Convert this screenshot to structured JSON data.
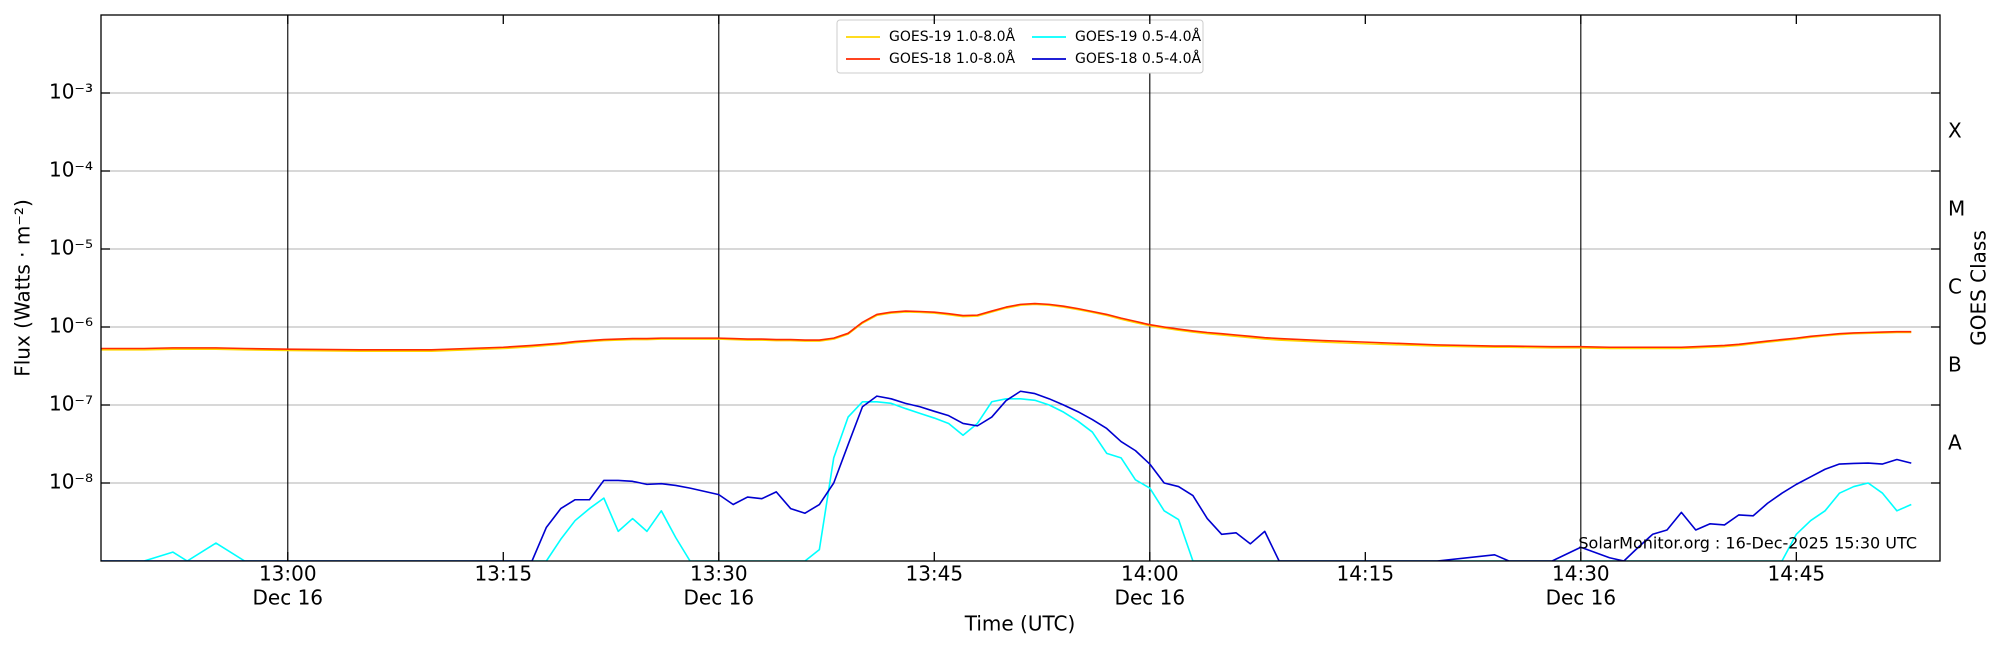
{
  "chart_data": {
    "type": "line",
    "ylabel": "Flux (Watts · m⁻²)",
    "y2label": "GOES Class",
    "xlabel": "Time (UTC)",
    "annotation": "SolarMonitor.org : 16-Dec-2025 15:30 UTC",
    "yscale": "log",
    "grid": true,
    "legend": "upper center",
    "xlim": [
      "12:47",
      "14:55"
    ],
    "xticks": [
      {
        "value": "13:00",
        "label": "13:00",
        "date": "Dec 16"
      },
      "13:15",
      {
        "value": "13:30",
        "label": "13:30",
        "date": "Dec 16"
      },
      "13:45",
      {
        "value": "14:00",
        "label": "14:00",
        "date": "Dec 16"
      },
      "14:15",
      {
        "value": "14:30",
        "label": "14:30",
        "date": "Dec 16"
      },
      "14:45"
    ],
    "ylim": [
      1e-09,
      0.01
    ],
    "yticks": [
      {
        "value": 1e-08,
        "label": "10⁻⁸"
      },
      {
        "value": 1e-07,
        "label": "10⁻⁷"
      },
      {
        "value": 1e-06,
        "label": "10⁻⁶"
      },
      {
        "value": 1e-05,
        "label": "10⁻⁵"
      },
      {
        "value": 0.0001,
        "label": "10⁻⁴"
      },
      {
        "value": 0.001,
        "label": "10⁻³"
      }
    ],
    "y2lim": [
      1e-09,
      0.01
    ],
    "y2ticks": [
      {
        "value": 3.162e-08,
        "label": "A"
      },
      {
        "value": 3.162e-07,
        "label": "B"
      },
      {
        "value": 3.162e-06,
        "label": "C"
      },
      {
        "value": 3.162e-05,
        "label": "M"
      },
      {
        "value": 0.0003162,
        "label": "X"
      }
    ],
    "x": [
      "12:47",
      "12:50",
      "12:52",
      "12:53",
      "12:55",
      "12:57",
      "13:00",
      "13:05",
      "13:10",
      "13:15",
      "13:17",
      "13:18",
      "13:19",
      "13:20",
      "13:21",
      "13:22",
      "13:23",
      "13:24",
      "13:25",
      "13:26",
      "13:27",
      "13:28",
      "13:30",
      "13:31",
      "13:32",
      "13:33",
      "13:34",
      "13:35",
      "13:36",
      "13:37",
      "13:38",
      "13:39",
      "13:40",
      "13:41",
      "13:42",
      "13:43",
      "13:44",
      "13:45",
      "13:46",
      "13:47",
      "13:48",
      "13:49",
      "13:50",
      "13:51",
      "13:52",
      "13:53",
      "13:54",
      "13:55",
      "13:56",
      "13:57",
      "13:58",
      "13:59",
      "14:00",
      "14:01",
      "14:02",
      "14:03",
      "14:04",
      "14:05",
      "14:06",
      "14:07",
      "14:08",
      "14:09",
      "14:12",
      "14:15",
      "14:20",
      "14:24",
      "14:25",
      "14:28",
      "14:30",
      "14:32",
      "14:33",
      "14:34",
      "14:35",
      "14:36",
      "14:37",
      "14:38",
      "14:39",
      "14:40",
      "14:41",
      "14:42",
      "14:43",
      "14:44",
      "14:45",
      "14:46",
      "14:47",
      "14:48",
      "14:49",
      "14:50",
      "14:51",
      "14:52",
      "14:53"
    ],
    "series": [
      {
        "name": "GOES-19 1.0-8.0Å",
        "color": "#ffd700",
        "values": [
          5.1e-07,
          5.1e-07,
          5.2e-07,
          5.2e-07,
          5.2e-07,
          5.1e-07,
          5e-07,
          4.9e-07,
          4.9e-07,
          5.3e-07,
          5.6e-07,
          5.8e-07,
          6e-07,
          6.3e-07,
          6.5e-07,
          6.7e-07,
          6.8e-07,
          6.9e-07,
          6.9e-07,
          7e-07,
          7e-07,
          7e-07,
          7e-07,
          6.9e-07,
          6.8e-07,
          6.8e-07,
          6.7e-07,
          6.7e-07,
          6.6e-07,
          6.6e-07,
          7e-07,
          8.1e-07,
          1.12e-06,
          1.41e-06,
          1.51e-06,
          1.56e-06,
          1.54e-06,
          1.51e-06,
          1.44e-06,
          1.36e-06,
          1.38e-06,
          1.56e-06,
          1.75e-06,
          1.9e-06,
          1.95e-06,
          1.9e-06,
          1.8e-06,
          1.67e-06,
          1.54e-06,
          1.41e-06,
          1.26e-06,
          1.14e-06,
          1.04e-06,
          9.7e-07,
          9.1e-07,
          8.6e-07,
          8.2e-07,
          7.9e-07,
          7.6e-07,
          7.3e-07,
          7e-07,
          6.8e-07,
          6.4e-07,
          6.1e-07,
          5.7e-07,
          5.5e-07,
          5.5e-07,
          5.4e-07,
          5.4e-07,
          5.3e-07,
          5.3e-07,
          5.3e-07,
          5.3e-07,
          5.3e-07,
          5.3e-07,
          5.4e-07,
          5.5e-07,
          5.6e-07,
          5.8e-07,
          6.1e-07,
          6.4e-07,
          6.7e-07,
          7e-07,
          7.4e-07,
          7.7e-07,
          8e-07,
          8.2e-07,
          8.3e-07,
          8.4e-07,
          8.5e-07,
          8.5e-07
        ]
      },
      {
        "name": "GOES-18 1.0-8.0Å",
        "color": "#ff2a00",
        "values": [
          5.3e-07,
          5.3e-07,
          5.4e-07,
          5.4e-07,
          5.4e-07,
          5.3e-07,
          5.2e-07,
          5.1e-07,
          5.1e-07,
          5.5e-07,
          5.8e-07,
          6e-07,
          6.2e-07,
          6.5e-07,
          6.7e-07,
          6.9e-07,
          7e-07,
          7.1e-07,
          7.1e-07,
          7.2e-07,
          7.2e-07,
          7.2e-07,
          7.2e-07,
          7.1e-07,
          7e-07,
          7e-07,
          6.9e-07,
          6.9e-07,
          6.8e-07,
          6.8e-07,
          7.2e-07,
          8.3e-07,
          1.15e-06,
          1.45e-06,
          1.55e-06,
          1.6e-06,
          1.58e-06,
          1.55e-06,
          1.48e-06,
          1.4e-06,
          1.42e-06,
          1.6e-06,
          1.8e-06,
          1.95e-06,
          2e-06,
          1.95e-06,
          1.85e-06,
          1.72e-06,
          1.58e-06,
          1.45e-06,
          1.3e-06,
          1.18e-06,
          1.07e-06,
          1e-06,
          9.4e-07,
          8.9e-07,
          8.5e-07,
          8.2e-07,
          7.9e-07,
          7.6e-07,
          7.3e-07,
          7.1e-07,
          6.7e-07,
          6.4e-07,
          5.9e-07,
          5.7e-07,
          5.7e-07,
          5.6e-07,
          5.6e-07,
          5.5e-07,
          5.5e-07,
          5.5e-07,
          5.5e-07,
          5.5e-07,
          5.5e-07,
          5.6e-07,
          5.7e-07,
          5.8e-07,
          6e-07,
          6.3e-07,
          6.6e-07,
          6.9e-07,
          7.2e-07,
          7.6e-07,
          7.9e-07,
          8.2e-07,
          8.4e-07,
          8.5e-07,
          8.6e-07,
          8.7e-07,
          8.7e-07
        ]
      },
      {
        "name": "GOES-19 0.5-4.0Å",
        "color": "#00ffff",
        "values": [
          1e-09,
          1e-09,
          1.3e-09,
          1e-09,
          1.7e-09,
          1e-09,
          1e-09,
          1e-09,
          1e-09,
          1e-09,
          1e-09,
          1e-09,
          1.9e-09,
          3.3e-09,
          4.7e-09,
          6.4e-09,
          2.4e-09,
          3.5e-09,
          2.4e-09,
          4.4e-09,
          2e-09,
          1e-09,
          1e-09,
          1e-09,
          1e-09,
          1e-09,
          1e-09,
          1e-09,
          1e-09,
          1.4e-09,
          2.1e-08,
          7e-08,
          1.1e-07,
          1.1e-07,
          1.05e-07,
          9e-08,
          7.8e-08,
          6.8e-08,
          5.8e-08,
          4.1e-08,
          5.8e-08,
          1.1e-07,
          1.2e-07,
          1.2e-07,
          1.15e-07,
          1e-07,
          8.1e-08,
          6.2e-08,
          4.5e-08,
          2.4e-08,
          2.1e-08,
          1.1e-08,
          8.6e-09,
          4.4e-09,
          3.4e-09,
          1e-09,
          1e-09,
          1e-09,
          1e-09,
          1e-09,
          1e-09,
          1e-09,
          1e-09,
          1e-09,
          1e-09,
          1e-09,
          1e-09,
          1e-09,
          1e-09,
          1e-09,
          1e-09,
          1e-09,
          1e-09,
          1e-09,
          1e-09,
          1e-09,
          1e-09,
          1e-09,
          1e-09,
          1e-09,
          1e-09,
          1e-09,
          2.2e-09,
          3.3e-09,
          4.4e-09,
          7.4e-09,
          9e-09,
          1e-08,
          7.4e-09,
          4.4e-09,
          5.3e-09
        ]
      },
      {
        "name": "GOES-18 0.5-4.0Å",
        "color": "#0000d0",
        "values": [
          1e-09,
          1e-09,
          1e-09,
          1e-09,
          1e-09,
          1e-09,
          1e-09,
          1e-09,
          1e-09,
          1e-09,
          1e-09,
          2.7e-09,
          4.7e-09,
          6.1e-09,
          6.1e-09,
          1.08e-08,
          1.08e-08,
          1.05e-08,
          9.6e-09,
          9.8e-09,
          9.3e-09,
          8.6e-09,
          7.1e-09,
          5.3e-09,
          6.6e-09,
          6.3e-09,
          7.7e-09,
          4.7e-09,
          4.1e-09,
          5.3e-09,
          1e-08,
          3.1e-08,
          9.5e-08,
          1.3e-07,
          1.2e-07,
          1.05e-07,
          9.5e-08,
          8.3e-08,
          7.3e-08,
          5.8e-08,
          5.4e-08,
          7e-08,
          1.14e-07,
          1.5e-07,
          1.4e-07,
          1.2e-07,
          1e-07,
          8.2e-08,
          6.5e-08,
          5e-08,
          3.4e-08,
          2.6e-08,
          1.75e-08,
          1e-08,
          9e-09,
          6.9e-09,
          3.5e-09,
          2.2e-09,
          2.3e-09,
          1.66e-09,
          2.4e-09,
          1e-09,
          1e-09,
          1e-09,
          1e-09,
          1.2e-09,
          1e-09,
          1e-09,
          1.5e-09,
          1.1e-09,
          1e-09,
          1.5e-09,
          2.2e-09,
          2.5e-09,
          4.2e-09,
          2.5e-09,
          3e-09,
          2.9e-09,
          3.9e-09,
          3.8e-09,
          5.5e-09,
          7.4e-09,
          9.6e-09,
          1.2e-08,
          1.5e-08,
          1.75e-08,
          1.78e-08,
          1.8e-08,
          1.75e-08,
          2e-08,
          1.8e-08
        ]
      }
    ]
  }
}
